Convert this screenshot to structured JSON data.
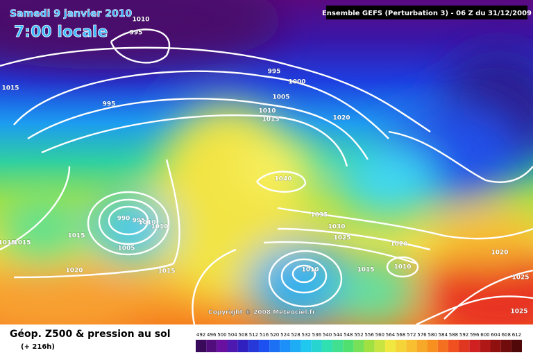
{
  "header": {
    "date": "Samedi 9 janvier 2010",
    "time": "7:00 locale",
    "model": "Ensemble GEFS (Perturbation 3)  -  06 Z du 31/12/2009",
    "copyright": "Copyright © 2008 Meteociel.fr"
  },
  "legend": {
    "title": "Géop. Z500 & pression au sol",
    "lead": "(+ 216h)",
    "scale": [
      492,
      496,
      500,
      504,
      508,
      512,
      516,
      520,
      524,
      528,
      532,
      536,
      540,
      544,
      548,
      552,
      556,
      560,
      564,
      568,
      572,
      576,
      580,
      584,
      588,
      592,
      596,
      600,
      604,
      608,
      612
    ]
  },
  "isobar_labels": [
    1010,
    995,
    1015,
    995,
    995,
    1000,
    1005,
    1010,
    1015,
    1020,
    1040,
    990,
    995,
    1010,
    1010,
    1015,
    1015,
    1015,
    1005,
    1020,
    1015,
    1035,
    1030,
    1025,
    1020,
    1010,
    1015,
    1010,
    1020,
    1025,
    1025
  ]
}
